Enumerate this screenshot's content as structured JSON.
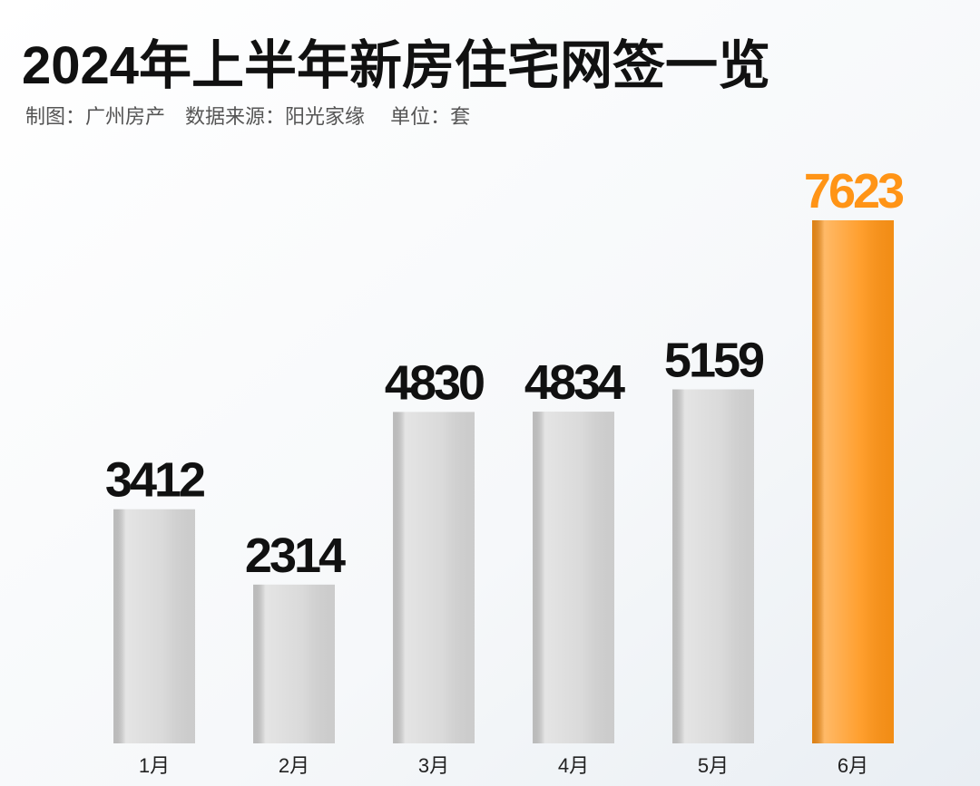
{
  "chart_data": {
    "type": "bar",
    "title": "2024年上半年新房住宅网签一览",
    "subtitle": "制图：广州房产　数据来源：阳光家缘　 单位：套",
    "categories": [
      "1月",
      "2月",
      "3月",
      "4月",
      "5月",
      "6月"
    ],
    "values": [
      3412,
      2314,
      4830,
      4834,
      5159,
      7623
    ],
    "colors": [
      "#d6d6d6",
      "#d6d6d6",
      "#d6d6d6",
      "#d6d6d6",
      "#d6d6d6",
      "#ff9416"
    ]
  }
}
